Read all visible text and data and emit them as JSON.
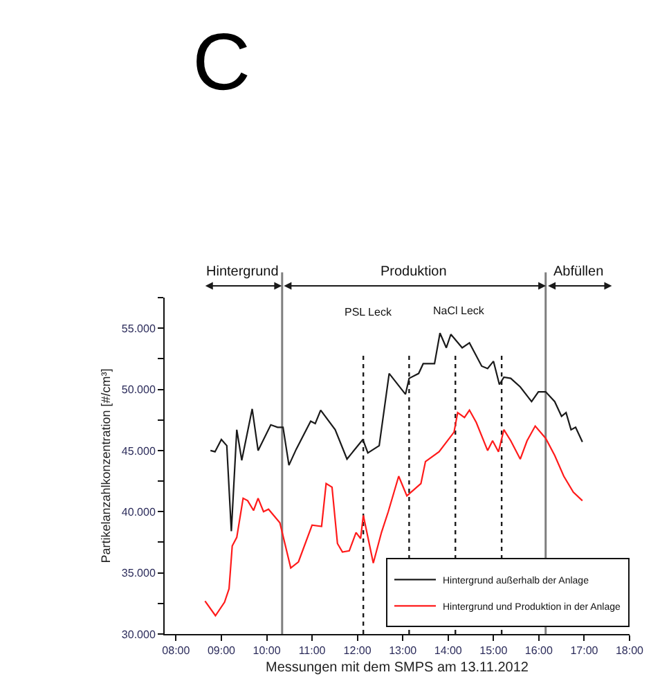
{
  "chart_data": {
    "type": "line",
    "title": "C",
    "xlabel": "Messungen mit dem SMPS am 13.11.2012",
    "ylabel": "Partikelanzahlkonzentration [#/cm³]",
    "xlim": [
      7.75,
      18
    ],
    "ylim": [
      30000,
      57500
    ],
    "xticks": [
      {
        "value": 8,
        "label": "08:00"
      },
      {
        "value": 9,
        "label": "09:00"
      },
      {
        "value": 10,
        "label": "10:00"
      },
      {
        "value": 11,
        "label": "11:00"
      },
      {
        "value": 12,
        "label": "12:00"
      },
      {
        "value": 13,
        "label": "13:00"
      },
      {
        "value": 14,
        "label": "14:00"
      },
      {
        "value": 15,
        "label": "15:00"
      },
      {
        "value": 16,
        "label": "16:00"
      },
      {
        "value": 17,
        "label": "17:00"
      },
      {
        "value": 18,
        "label": "18:00"
      }
    ],
    "yticks": [
      {
        "value": 30000,
        "label": "30.000"
      },
      {
        "value": 32500,
        "label": null
      },
      {
        "value": 35000,
        "label": "35.000"
      },
      {
        "value": 37500,
        "label": null
      },
      {
        "value": 40000,
        "label": "40.000"
      },
      {
        "value": 42500,
        "label": null
      },
      {
        "value": 45000,
        "label": "45.000"
      },
      {
        "value": 47500,
        "label": null
      },
      {
        "value": 50000,
        "label": "50.000"
      },
      {
        "value": 52500,
        "label": null
      },
      {
        "value": 55000,
        "label": "55.000"
      },
      {
        "value": 57500,
        "label": null
      }
    ],
    "grid": false,
    "legend": "bottom right",
    "marker": "none",
    "line_style": "solid",
    "series": [
      {
        "name": "Hintergrund außerhalb der Anlage",
        "color": "#1a1a1a",
        "x": [
          8.76,
          8.86,
          9.0,
          9.12,
          9.22,
          9.34,
          9.45,
          9.68,
          9.81,
          10.09,
          10.24,
          10.36,
          10.49,
          10.65,
          10.97,
          11.07,
          11.19,
          11.51,
          11.77,
          12.12,
          12.23,
          12.48,
          12.7,
          13.06,
          13.14,
          13.35,
          13.45,
          13.7,
          13.82,
          13.96,
          14.06,
          14.31,
          14.47,
          14.74,
          14.87,
          15.0,
          15.13,
          15.23,
          15.38,
          15.59,
          15.84,
          15.99,
          16.15,
          16.35,
          16.5,
          16.6,
          16.71,
          16.81,
          16.96
        ],
        "values": [
          45000,
          44900,
          45900,
          45400,
          38400,
          46700,
          44200,
          48400,
          45000,
          47100,
          46900,
          46900,
          43800,
          45100,
          47400,
          47200,
          48300,
          46700,
          44300,
          45900,
          44800,
          45400,
          51300,
          49600,
          50900,
          51300,
          52100,
          52100,
          54600,
          53400,
          54500,
          53400,
          53800,
          51900,
          51700,
          52300,
          50400,
          51000,
          50900,
          50200,
          49000,
          49800,
          49800,
          49000,
          47800,
          48100,
          46700,
          46900,
          45700
        ]
      },
      {
        "name": "Hintergrund und Produktion in der Anlage",
        "color": "#ff1a1a",
        "x": [
          8.64,
          8.87,
          9.07,
          9.17,
          9.24,
          9.34,
          9.48,
          9.58,
          9.71,
          9.81,
          9.93,
          10.04,
          10.29,
          10.53,
          10.7,
          11.0,
          11.21,
          11.31,
          11.44,
          11.56,
          11.67,
          11.82,
          11.97,
          12.07,
          12.13,
          12.35,
          12.53,
          12.68,
          12.91,
          13.09,
          13.4,
          13.5,
          13.8,
          14.13,
          14.21,
          14.36,
          14.47,
          14.62,
          14.87,
          14.98,
          15.11,
          15.23,
          15.38,
          15.59,
          15.74,
          15.92,
          16.15,
          16.35,
          16.55,
          16.76,
          16.96
        ],
        "values": [
          32700,
          31500,
          32600,
          33700,
          37200,
          37900,
          41100,
          40900,
          40100,
          41100,
          40000,
          40200,
          39100,
          35400,
          35900,
          38900,
          38800,
          42300,
          42000,
          37400,
          36700,
          36800,
          38300,
          37800,
          39700,
          35800,
          38300,
          40000,
          42900,
          41300,
          42300,
          44100,
          44900,
          46500,
          48100,
          47700,
          48300,
          47300,
          45000,
          45800,
          44900,
          46700,
          45800,
          44300,
          45800,
          47000,
          46000,
          44600,
          42900,
          41600,
          40900
        ]
      }
    ],
    "ref_lines": [
      {
        "axis": "x",
        "value": 10.34,
        "line_style": "solid",
        "color": "#7f7f7f"
      },
      {
        "axis": "x",
        "value": 12.13,
        "line_style": "dotted",
        "color": "#1a1a1a"
      },
      {
        "axis": "x",
        "value": 13.14,
        "line_style": "dotted",
        "color": "#1a1a1a"
      },
      {
        "axis": "x",
        "value": 14.16,
        "line_style": "dotted",
        "color": "#1a1a1a"
      },
      {
        "axis": "x",
        "value": 15.18,
        "line_style": "dotted",
        "color": "#1a1a1a"
      },
      {
        "axis": "x",
        "value": 16.15,
        "line_style": "solid",
        "color": "#7f7f7f"
      }
    ],
    "annotations": [
      "Hintergrund",
      "Produktion",
      "Abfüllen",
      "PSL Leck",
      "NaCl Leck"
    ]
  }
}
